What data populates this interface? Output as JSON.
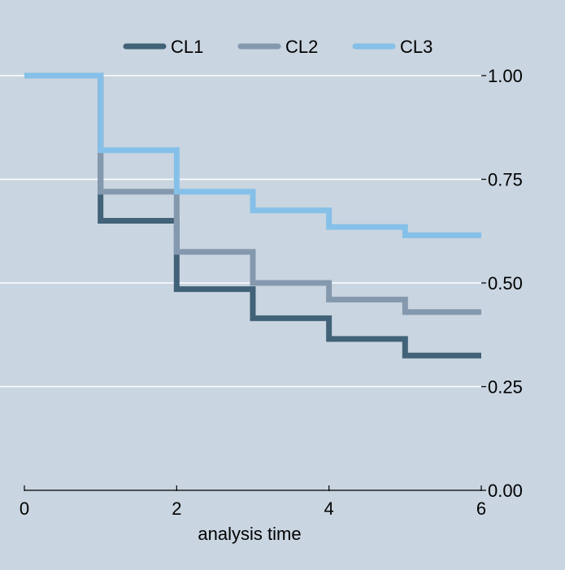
{
  "chart_data": {
    "type": "line",
    "step": "post",
    "title": "",
    "xlabel": "analysis time",
    "ylabel": "",
    "xlim": [
      0,
      6
    ],
    "ylim": [
      0,
      1
    ],
    "x_ticks": [
      0,
      2,
      4,
      6
    ],
    "x_tick_labels": [
      "0",
      "2",
      "4",
      "6"
    ],
    "y_ticks": [
      0,
      0.25,
      0.5,
      0.75,
      1.0
    ],
    "y_tick_labels": [
      "0.00",
      "0.25",
      "0.50",
      "0.75",
      "1.00"
    ],
    "y_axis_side": "right",
    "grid": "horizontal",
    "legend_position": "top",
    "x": [
      0,
      1,
      2,
      3,
      4,
      5,
      6
    ],
    "series": [
      {
        "name": "CL1",
        "color": "#416278",
        "values": [
          1.0,
          0.65,
          0.485,
          0.415,
          0.365,
          0.325,
          0.325
        ]
      },
      {
        "name": "CL2",
        "color": "#8599ae",
        "values": [
          1.0,
          0.72,
          0.575,
          0.5,
          0.46,
          0.43,
          0.43
        ]
      },
      {
        "name": "CL3",
        "color": "#85c0e9",
        "values": [
          1.0,
          0.82,
          0.72,
          0.675,
          0.635,
          0.615,
          0.615
        ]
      }
    ],
    "background": "#c9d5e0",
    "grid_color": "#ffffff"
  }
}
